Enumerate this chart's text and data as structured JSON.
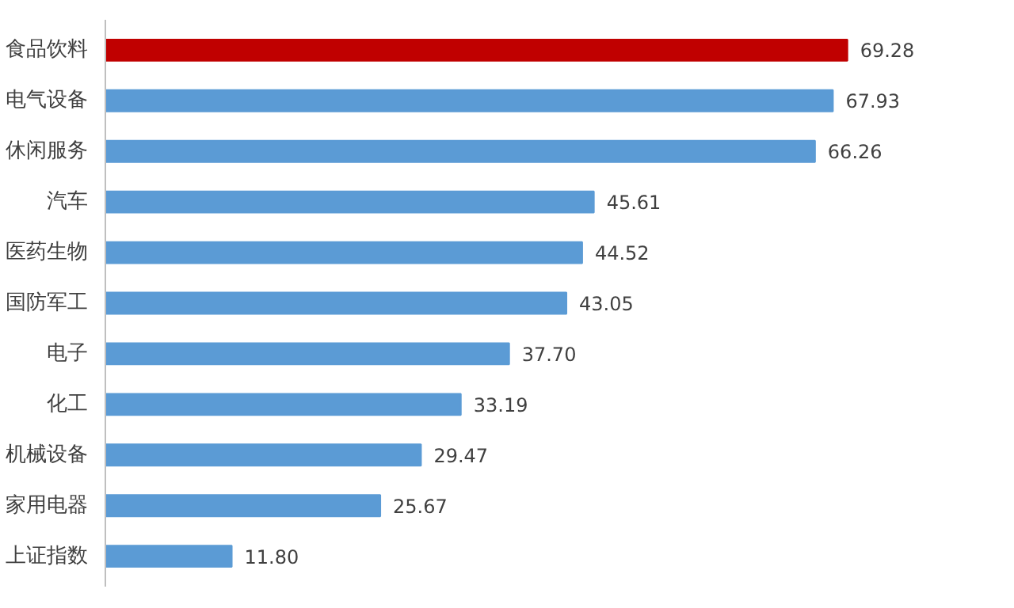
{
  "chart_data": {
    "type": "bar",
    "orientation": "horizontal",
    "categories": [
      "食品饮料",
      "电气设备",
      "休闲服务",
      "汽车",
      "医药生物",
      "国防军工",
      "电子",
      "化工",
      "机械设备",
      "家用电器",
      "上证指数"
    ],
    "values": [
      69.28,
      67.93,
      66.26,
      45.61,
      44.52,
      43.05,
      37.7,
      33.19,
      29.47,
      25.67,
      11.8
    ],
    "colors": [
      "#c00000",
      "#5b9bd5",
      "#5b9bd5",
      "#5b9bd5",
      "#5b9bd5",
      "#5b9bd5",
      "#5b9bd5",
      "#5b9bd5",
      "#5b9bd5",
      "#5b9bd5",
      "#5b9bd5"
    ],
    "value_labels": [
      "69.28",
      "67.93",
      "66.26",
      "45.61",
      "44.52",
      "43.05",
      "37.70",
      "33.19",
      "29.47",
      "25.67",
      "11.80"
    ],
    "grid": false,
    "tick_labels": "y"
  }
}
